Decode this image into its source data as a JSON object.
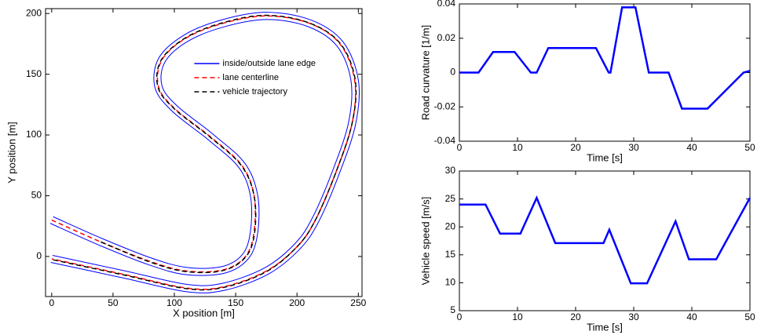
{
  "chart_data": [
    {
      "type": "line",
      "xlabel": "X position [m]",
      "ylabel": "Y position [m]",
      "xlim": [
        -5,
        253
      ],
      "ylim": [
        -33,
        204
      ],
      "xticks": [
        0,
        50,
        100,
        150,
        200,
        250
      ],
      "yticks": [
        0,
        50,
        100,
        150,
        200
      ],
      "legend": "upper right",
      "series": [
        {
          "name": "inside/outside lane edge",
          "color": "#0000ff",
          "linestyle": "solid",
          "x": [
            1.2,
            41.1,
            80.7,
            110,
            138.5,
            155.4,
            162,
            162.1,
            152.6,
            128.1,
            97.9,
            84.1,
            87.4,
            108.5,
            139.1,
            175,
            211.5,
            237.4,
            250,
            247.9,
            234.8,
            217.6,
            202,
            176.1,
            140.3,
            109.6,
            59.3,
            -0.7
          ],
          "values": [
            32.7,
            14.8,
            -1.1,
            -9,
            -8.4,
            1.5,
            20.3,
            49.4,
            73.2,
            95.7,
            119.9,
            139.4,
            163.5,
            182.6,
            194.9,
            201,
            194.6,
            176.8,
            145.3,
            109.4,
            69,
            28.5,
            5.8,
            -14.8,
            -28,
            -29,
            -17.9,
            -4.9
          ]
        },
        {
          "color": "#0000ff",
          "linestyle": "solid",
          "x": [
            -1.2,
            38.9,
            79.3,
            110,
            141.5,
            160.6,
            168,
            167.9,
            157.4,
            131.9,
            102.1,
            89.9,
            92.6,
            111.5,
            140.9,
            175,
            208.5,
            232.6,
            244,
            242.1,
            229.2,
            212.4,
            198,
            173.9,
            139.7,
            110.4,
            60.7,
            0.7
          ],
          "values": [
            27.3,
            9.2,
            -6.9,
            -15,
            -13.6,
            -1.5,
            19.7,
            50.6,
            76.8,
            100.3,
            124.1,
            140.6,
            160.5,
            177.4,
            189.1,
            195,
            189.4,
            173.2,
            144.7,
            110.6,
            71,
            31.5,
            10.2,
            -9.2,
            -22,
            -23,
            -12.1,
            0.9
          ]
        },
        {
          "name": "lane centerline",
          "color": "#ff0000",
          "linestyle": "dashed",
          "x": [
            0,
            40,
            80,
            110,
            140,
            158,
            165,
            165,
            155,
            130,
            100,
            87,
            90,
            110,
            140,
            175,
            210,
            235,
            247,
            245,
            232,
            215,
            200,
            175,
            140,
            110,
            60,
            0
          ],
          "values": [
            30,
            12,
            -4,
            -12,
            -11,
            0,
            20,
            50,
            75,
            98,
            122,
            140,
            162,
            180,
            192,
            198,
            192,
            175,
            145,
            110,
            70,
            30,
            8,
            -12,
            -25,
            -26,
            -15,
            -2
          ]
        },
        {
          "name": "vehicle trajectory",
          "color": "#000000",
          "linestyle": "dashed",
          "x": [
            40,
            80,
            110,
            140,
            158.5,
            165.5,
            165,
            154.5,
            129.5,
            99.5,
            86.5,
            89.5,
            110,
            140,
            175,
            210.5,
            235.5,
            247.5,
            245,
            232,
            215,
            200,
            175,
            140,
            110,
            60,
            0
          ],
          "values": [
            12,
            -4.5,
            -12.5,
            -11.5,
            0,
            20,
            50,
            75,
            98,
            122,
            140,
            162,
            180.5,
            192.5,
            198.5,
            192,
            175,
            145,
            110,
            70,
            30,
            8,
            -12.5,
            -25.5,
            -26.5,
            -15.5,
            -2.5
          ]
        }
      ]
    },
    {
      "type": "line",
      "xlabel": "Time [s]",
      "ylabel": "Road curvature [1/m]",
      "xlim": [
        0,
        50
      ],
      "ylim": [
        -0.04,
        0.04
      ],
      "xticks": [
        0,
        10,
        20,
        30,
        40,
        50
      ],
      "yticks": [
        -0.04,
        -0.02,
        0,
        0.02,
        0.04
      ],
      "series": [
        {
          "color": "#0000ff",
          "linestyle": "solid",
          "x": [
            0,
            3.3,
            5.8,
            9.5,
            12.3,
            13.3,
            15.3,
            23.5,
            25.7,
            26,
            28,
            30.3,
            32.6,
            36,
            38.3,
            42.7,
            48.9,
            50
          ],
          "values": [
            0,
            0,
            0.012,
            0.012,
            0,
            0,
            0.0143,
            0.0143,
            0,
            0,
            0.038,
            0.038,
            0,
            0,
            -0.021,
            -0.021,
            0,
            0.001
          ]
        }
      ]
    },
    {
      "type": "line",
      "xlabel": "Time [s]",
      "ylabel": "Vehicle speed [m/s]",
      "xlim": [
        0,
        50
      ],
      "ylim": [
        5,
        30
      ],
      "xticks": [
        0,
        10,
        20,
        30,
        40,
        50
      ],
      "yticks": [
        5,
        10,
        15,
        20,
        25,
        30
      ],
      "series": [
        {
          "color": "#0000ff",
          "linestyle": "solid",
          "x": [
            0,
            4.5,
            7,
            10.5,
            13.3,
            16.5,
            24.8,
            25.8,
            29.5,
            32.3,
            37.2,
            39.5,
            44.2,
            50
          ],
          "values": [
            24,
            24,
            18.8,
            18.8,
            25.2,
            17.1,
            17.1,
            19.5,
            9.9,
            9.9,
            21,
            14.2,
            14.2,
            25.2
          ]
        }
      ]
    }
  ]
}
